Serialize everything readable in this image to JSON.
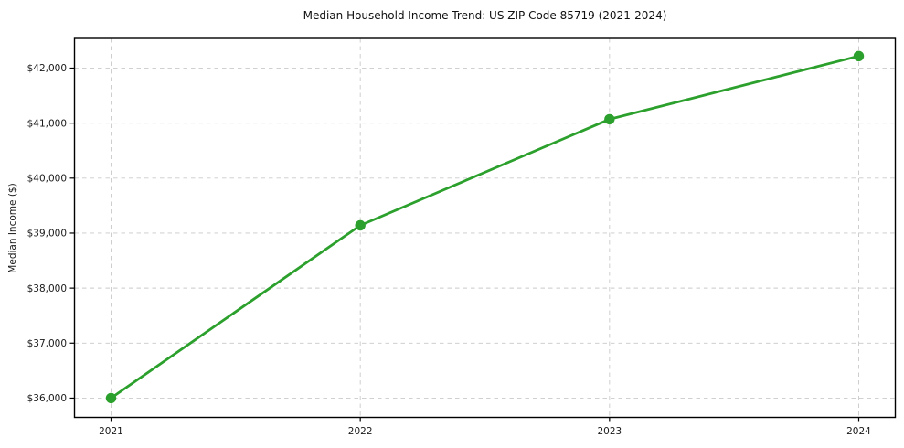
{
  "chart_data": {
    "type": "line",
    "title": "Median Household Income Trend: US ZIP Code 85719 (2021-2024)",
    "xlabel": "",
    "ylabel": "Median Income ($)",
    "x": [
      2021,
      2022,
      2023,
      2024
    ],
    "x_tick_labels": [
      "2021",
      "2022",
      "2023",
      "2024"
    ],
    "series": [
      {
        "name": "Median Household Income",
        "values": [
          36000,
          39140,
          41070,
          42220
        ]
      }
    ],
    "y_ticks": [
      36000,
      37000,
      38000,
      39000,
      40000,
      41000,
      42000
    ],
    "y_tick_labels": [
      "$36,000",
      "$37,000",
      "$38,000",
      "$39,000",
      "$40,000",
      "$41,000",
      "$42,000"
    ],
    "ylim": [
      35650,
      42540
    ],
    "grid": true,
    "grid_style": "dashed",
    "legend_position": "none",
    "colors": {
      "line": "#2ca02c",
      "marker": "#2ca02c",
      "grid": "#c9c9c9",
      "axis": "#000000",
      "text": "#1a1a1a",
      "background": "#ffffff"
    },
    "marker": "circle"
  }
}
